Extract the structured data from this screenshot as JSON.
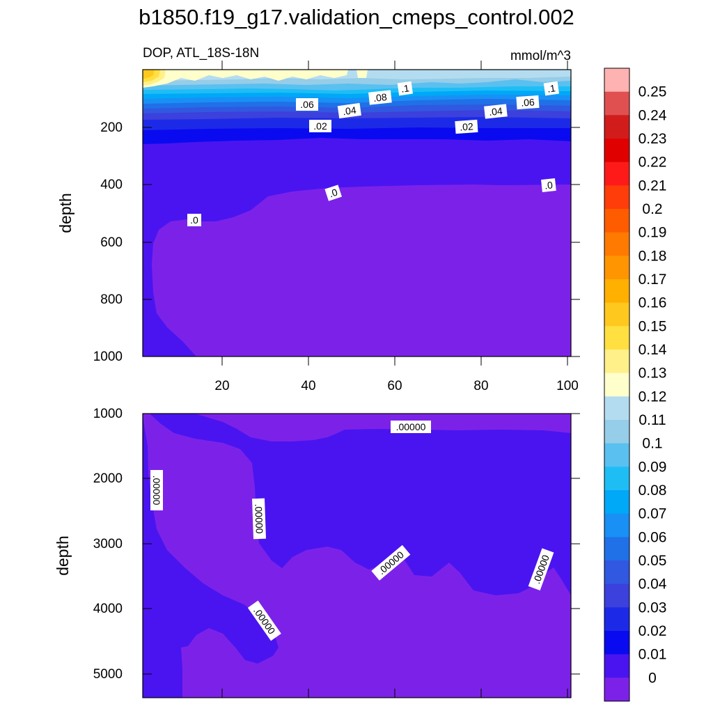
{
  "title": "b1850.f19_g17.validation_cmeps_control.002",
  "chart_data": {
    "type": "contour",
    "variable_label": "DOP, ATL_18S-18N",
    "units": "mmol/m^3",
    "colorbar": {
      "levels": [
        "0.25",
        "0.24",
        "0.23",
        "0.22",
        "0.21",
        "0.2",
        "0.19",
        "0.18",
        "0.17",
        "0.16",
        "0.15",
        "0.14",
        "0.13",
        "0.12",
        "0.11",
        "0.1",
        "0.09",
        "0.08",
        "0.07",
        "0.06",
        "0.05",
        "0.04",
        "0.03",
        "0.02",
        "0.01",
        "0"
      ],
      "colors": [
        "#ffb2b2",
        "#e05050",
        "#d21c1c",
        "#e00000",
        "#ff1a1a",
        "#ff3d0a",
        "#ff5c00",
        "#ff7a00",
        "#ff9500",
        "#ffb000",
        "#ffc81e",
        "#ffe040",
        "#fff08a",
        "#ffffcc",
        "#b4dcf0",
        "#96cde8",
        "#5ac0f0",
        "#1ebef5",
        "#00a8f8",
        "#1890f5",
        "#2070e8",
        "#3058e0",
        "#3c40dc",
        "#1c2ae8",
        "#0a0af0",
        "#4a14f0",
        "#7c22e8"
      ]
    },
    "upper_panel": {
      "ylabel": "depth",
      "ylim": [
        0,
        1000
      ],
      "yticks": [
        "200",
        "400",
        "600",
        "800",
        "1000"
      ],
      "xlim": [
        0,
        101
      ],
      "xticks": [
        "20",
        "40",
        "60",
        "80",
        "100"
      ],
      "contour_labels": [
        ".1",
        ".08",
        ".06",
        ".04",
        ".02",
        ".0",
        ".1",
        ".06",
        ".04",
        ".02",
        ".0",
        ".0"
      ]
    },
    "lower_panel": {
      "ylabel": "depth",
      "ylim": [
        1000,
        5400
      ],
      "yticks": [
        "1000",
        "2000",
        "3000",
        "4000",
        "5000"
      ],
      "contour_labels": [
        ".00000",
        ".00000",
        ".00000",
        ".00000",
        ".00000",
        ".00000"
      ]
    }
  }
}
